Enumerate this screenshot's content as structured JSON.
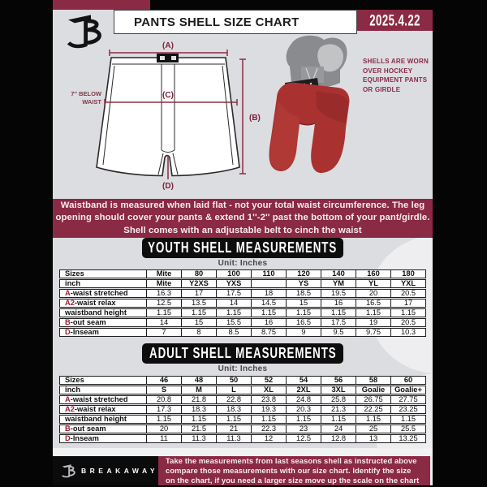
{
  "header": {
    "title": "PANTS SHELL SIZE CHART",
    "date": "2025.4.22"
  },
  "colors": {
    "maroon": "#8b2a45",
    "dimension_line": "#8e2b44",
    "shell_red": "#a93231",
    "pad_gray": "#8a8b8e",
    "page_bg": "#dcdde1"
  },
  "diagram": {
    "label_a": "(A)",
    "label_b": "(B)",
    "label_c": "(C)",
    "label_d": "(D)",
    "waist_note_line1": "7'' BELOW",
    "waist_note_line2": "WAIST",
    "photo_note": "SHELLS ARE WORN\nOVER HOCKEY\nEQUIPMENT PANTS\nOR GIRDLE"
  },
  "info_banner": "Waistband is measured when laid flat - not your total waist circumference. The leg\nopening should cover your pants & extend 1''-2'' past the bottom of your pant/girdle.\nShell comes with an adjustable belt to cinch the waist",
  "youth": {
    "heading": "YOUTH SHELL MEASUREMENTS",
    "unit": "Unit: Inches",
    "rows": [
      {
        "prefix": "",
        "label": "Sizes",
        "header": true,
        "cells": [
          "Mite",
          "80",
          "100",
          "110",
          "120",
          "140",
          "160",
          "180"
        ]
      },
      {
        "prefix": "",
        "label": "inch",
        "header": true,
        "cells": [
          "Mite",
          "Y2XS",
          "YXS",
          "",
          "YS",
          "YM",
          "YL",
          "YXL"
        ]
      },
      {
        "prefix": "A",
        "label": "-waist stretched",
        "header": false,
        "cells": [
          "16.3",
          "17",
          "17.5",
          "18",
          "18.5",
          "19.5",
          "20",
          "20.5"
        ]
      },
      {
        "prefix": "A2",
        "label": "-waist relax",
        "header": false,
        "cells": [
          "12.5",
          "13.5",
          "14",
          "14.5",
          "15",
          "16",
          "16.5",
          "17"
        ]
      },
      {
        "prefix": "",
        "label": "waistband height",
        "header": false,
        "cells": [
          "1.15",
          "1.15",
          "1.15",
          "1.15",
          "1.15",
          "1.15",
          "1.15",
          "1.15"
        ]
      },
      {
        "prefix": "B",
        "label": "-out seam",
        "header": false,
        "cells": [
          "14",
          "15",
          "15.5",
          "16",
          "16.5",
          "17.5",
          "19",
          "20.5"
        ]
      },
      {
        "prefix": "D",
        "label": "-Inseam",
        "header": false,
        "cells": [
          "7",
          "8",
          "8.5",
          "8.75",
          "9",
          "9.5",
          "9.75",
          "10.3"
        ]
      }
    ]
  },
  "adult": {
    "heading": "ADULT SHELL MEASUREMENTS",
    "unit": "Unit: Inches",
    "rows": [
      {
        "prefix": "",
        "label": "Sizes",
        "header": true,
        "cells": [
          "46",
          "48",
          "50",
          "52",
          "54",
          "56",
          "58",
          "60"
        ]
      },
      {
        "prefix": "",
        "label": "inch",
        "header": true,
        "cells": [
          "S",
          "M",
          "L",
          "XL",
          "2XL",
          "3XL",
          "Goalie",
          "Goalie+"
        ]
      },
      {
        "prefix": "A",
        "label": "-waist stretched",
        "header": false,
        "cells": [
          "20.8",
          "21.8",
          "22.8",
          "23.8",
          "24.8",
          "25.8",
          "26.75",
          "27.75"
        ]
      },
      {
        "prefix": "A2",
        "label": "-waist relax",
        "header": false,
        "cells": [
          "17.3",
          "18.3",
          "18.3",
          "19.3",
          "20.3",
          "21.3",
          "22.25",
          "23.25"
        ]
      },
      {
        "prefix": "",
        "label": "waistband height",
        "header": false,
        "cells": [
          "1.15",
          "1.15",
          "1.15",
          "1.15",
          "1.15",
          "1.15",
          "1.15",
          "1.15"
        ]
      },
      {
        "prefix": "B",
        "label": "-out seam",
        "header": false,
        "cells": [
          "20",
          "21.5",
          "21",
          "22.3",
          "23",
          "24",
          "25",
          "25.5"
        ]
      },
      {
        "prefix": "D",
        "label": "-Inseam",
        "header": false,
        "cells": [
          "11",
          "11.3",
          "11.3",
          "12",
          "12.5",
          "12.8",
          "13",
          "13.25"
        ]
      }
    ]
  },
  "footer": {
    "brand": "BREAKAWAY",
    "note": "Take the measurements from last seasons shell as instructed above\ncompare those measurements  with our size chart. Identify the size\non the chart, if you need a larger size move up the scale on the chart"
  }
}
